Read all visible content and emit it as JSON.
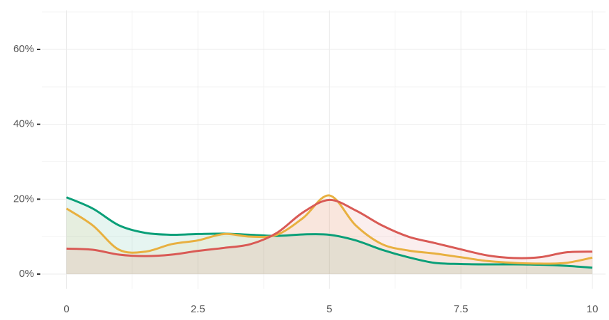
{
  "chart_data": {
    "type": "area",
    "x": [
      0,
      0.5,
      1,
      1.5,
      2,
      2.5,
      3,
      3.5,
      4,
      4.5,
      5,
      5.5,
      6,
      6.5,
      7,
      7.5,
      8,
      8.5,
      9,
      9.5,
      10
    ],
    "series": [
      {
        "color": "#0a9f78",
        "values": [
          20.5,
          17.5,
          13,
          11,
          10.5,
          10.7,
          10.8,
          10.5,
          10.2,
          10.6,
          10.5,
          9,
          6.5,
          4.5,
          3,
          2.7,
          2.6,
          2.6,
          2.5,
          2.2,
          1.7
        ]
      },
      {
        "color": "#e8b040",
        "values": [
          17.5,
          13,
          6.5,
          6,
          8,
          9,
          10.7,
          10,
          10.5,
          15,
          21,
          13,
          8,
          6.3,
          5.5,
          4.5,
          3.5,
          3,
          2.8,
          3,
          4.4
        ]
      },
      {
        "color": "#d95a55",
        "values": [
          6.8,
          6.5,
          5.2,
          4.8,
          5.2,
          6.2,
          7,
          8,
          11,
          16.5,
          19.8,
          17,
          13,
          10,
          8.3,
          6.6,
          5,
          4.3,
          4.5,
          5.8,
          6
        ]
      }
    ],
    "xlim": [
      -0.47,
      10.25
    ],
    "ylim": [
      -3.9,
      70.4
    ],
    "xticks": [
      0,
      2.5,
      5,
      7.5,
      10
    ],
    "yticks": [
      {
        "value": 0,
        "label": "0%"
      },
      {
        "value": 20,
        "label": "20%"
      },
      {
        "value": 40,
        "label": "40%"
      },
      {
        "value": 60,
        "label": "60%"
      }
    ],
    "grid": true
  }
}
